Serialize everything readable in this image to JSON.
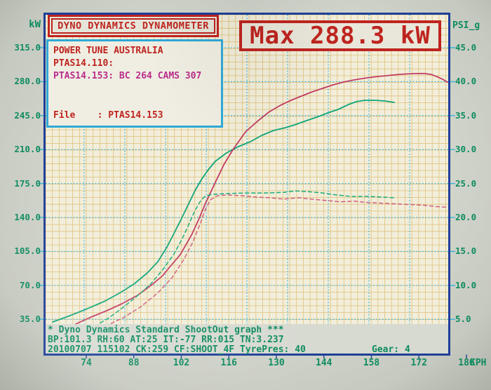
{
  "header": {
    "title": "DYNO DYNAMICS DYNAMOMETER",
    "max_badge": "Max 288.3 kW"
  },
  "info_box": {
    "company": "POWER TUNE AUSTRALIA",
    "run1": "PTAS14.110:",
    "run2": "PTAS14.153: BC 264 CAMS 307",
    "file": "File    : PTAS14.153"
  },
  "footer": {
    "line1": "* Dyno Dynamics Standard ShootOut graph ***",
    "line2": "BP:101.3 RH:60 AT:25 IT:-77 RR:015 TN:3.237",
    "line3": "20100707 115102 CK:259 CF:SHOOT_4F TyrePres: 40",
    "gear": "Gear: 4"
  },
  "axes": {
    "left_unit": "kW",
    "right_unit": "PSI_g",
    "x_unit": "KPH",
    "left_ticks": [
      "315.0",
      "280.0",
      "245.0",
      "210.0",
      "175.0",
      "140.0",
      "105.0",
      "70.0",
      "35.0"
    ],
    "right_ticks": [
      "45.0",
      "40.0",
      "35.0",
      "30.0",
      "25.0",
      "20.0",
      "15.0",
      "10.0",
      "5.0"
    ],
    "x_ticks": [
      "74",
      "88",
      "102",
      "116",
      "130",
      "144",
      "158",
      "172",
      "186"
    ]
  },
  "colors": {
    "frame": "#1e3f99",
    "grid_major": "#35b4dc",
    "grid_minor": "#ddb868",
    "plot_bg": "#f2eedb",
    "footer_bg": "#d7dad1",
    "page_bg": "#d4d7ce",
    "text_green": "#0e8b60",
    "text_red": "#bf241f",
    "text_magenta": "#b92d8c",
    "info_border": "#2fa9d8",
    "power_153": "#c23b63",
    "power_110": "#0ea57a",
    "boost_153": "#d06080",
    "boost_110": "#18ad7c"
  },
  "chart_data": {
    "type": "line",
    "title": "Max 288.3 kW",
    "xlabel": "KPH",
    "ylabel_left": "kW",
    "ylabel_right": "PSI_g",
    "x_range": [
      61,
      181
    ],
    "y_left_range": [
      30,
      322
    ],
    "y_right_range": [
      4.3,
      46
    ],
    "grid": true,
    "legend_position": "none",
    "max_power_kw": 288.3,
    "series": [
      {
        "name": "PTAS14.110 power",
        "axis": "left",
        "unit": "kW",
        "style": "solid",
        "color": "#0ea57a",
        "points": [
          [
            64.1,
            32.3
          ],
          [
            69.2,
            38.8
          ],
          [
            74.4,
            46.1
          ],
          [
            79.6,
            54.0
          ],
          [
            84.1,
            62.7
          ],
          [
            88.3,
            72.1
          ],
          [
            92.0,
            82.9
          ],
          [
            95.1,
            94.5
          ],
          [
            97.8,
            109.7
          ],
          [
            99.8,
            123.4
          ],
          [
            101.9,
            137.8
          ],
          [
            104.0,
            153.0
          ],
          [
            106.0,
            167.5
          ],
          [
            107.9,
            179.0
          ],
          [
            109.8,
            188.4
          ],
          [
            112.0,
            197.8
          ],
          [
            115.3,
            206.5
          ],
          [
            118.8,
            213.0
          ],
          [
            122.4,
            218.1
          ],
          [
            125.7,
            224.6
          ],
          [
            129.2,
            229.6
          ],
          [
            132.7,
            232.5
          ],
          [
            135.4,
            235.4
          ],
          [
            138.9,
            239.8
          ],
          [
            142.0,
            243.4
          ],
          [
            145.1,
            247.7
          ],
          [
            148.2,
            251.3
          ],
          [
            151.3,
            256.4
          ],
          [
            153.6,
            259.3
          ],
          [
            156.0,
            260.7
          ],
          [
            159.1,
            260.7
          ],
          [
            162.0,
            260.0
          ],
          [
            164.7,
            258.5
          ]
        ]
      },
      {
        "name": "PTAS14.153 power",
        "axis": "left",
        "unit": "kW",
        "style": "solid",
        "color": "#c23b63",
        "points": [
          [
            70.9,
            30.2
          ],
          [
            75.4,
            37.4
          ],
          [
            80.0,
            43.9
          ],
          [
            84.5,
            51.1
          ],
          [
            89.1,
            59.8
          ],
          [
            93.6,
            71.4
          ],
          [
            96.5,
            80.0
          ],
          [
            98.2,
            87.3
          ],
          [
            101.7,
            101.7
          ],
          [
            105.0,
            121.9
          ],
          [
            107.1,
            137.8
          ],
          [
            109.1,
            154.5
          ],
          [
            112.0,
            176.1
          ],
          [
            114.7,
            195.6
          ],
          [
            117.4,
            210.8
          ],
          [
            120.9,
            228.2
          ],
          [
            124.4,
            239.0
          ],
          [
            127.7,
            248.4
          ],
          [
            131.2,
            255.6
          ],
          [
            134.3,
            260.7
          ],
          [
            137.4,
            265.0
          ],
          [
            140.5,
            269.4
          ],
          [
            143.6,
            273.0
          ],
          [
            146.7,
            276.6
          ],
          [
            149.8,
            279.5
          ],
          [
            152.9,
            281.7
          ],
          [
            156.0,
            283.5
          ],
          [
            159.1,
            284.9
          ],
          [
            162.2,
            286.0
          ],
          [
            165.3,
            287.1
          ],
          [
            168.0,
            287.8
          ],
          [
            170.5,
            288.2
          ],
          [
            173.6,
            288.3
          ],
          [
            175.6,
            287.4
          ],
          [
            177.7,
            284.5
          ],
          [
            179.4,
            281.6
          ],
          [
            180.4,
            279.4
          ]
        ]
      },
      {
        "name": "PTAS14.110 boost",
        "axis": "right",
        "unit": "PSI_g",
        "style": "dashed",
        "color": "#18ad7c",
        "points": [
          [
            76.5,
            4.0
          ],
          [
            80.6,
            5.2
          ],
          [
            84.7,
            6.7
          ],
          [
            88.9,
            8.4
          ],
          [
            93.0,
            10.2
          ],
          [
            96.5,
            12.3
          ],
          [
            99.8,
            14.6
          ],
          [
            102.3,
            16.9
          ],
          [
            104.4,
            19.2
          ],
          [
            106.0,
            21.0
          ],
          [
            107.5,
            22.3
          ],
          [
            108.9,
            23.1
          ],
          [
            111.0,
            23.4
          ],
          [
            114.7,
            23.5
          ],
          [
            120.9,
            23.6
          ],
          [
            127.1,
            23.6
          ],
          [
            132.3,
            23.7
          ],
          [
            135.4,
            23.9
          ],
          [
            139.5,
            23.8
          ],
          [
            143.6,
            23.6
          ],
          [
            147.8,
            23.3
          ],
          [
            151.9,
            23.1
          ],
          [
            157.1,
            23.1
          ],
          [
            161.2,
            23.0
          ],
          [
            164.7,
            22.9
          ]
        ]
      },
      {
        "name": "PTAS14.153 boost",
        "axis": "right",
        "unit": "PSI_g",
        "style": "dashed",
        "color": "#d06080",
        "points": [
          [
            79.6,
            4.0
          ],
          [
            84.7,
            5.2
          ],
          [
            89.9,
            6.8
          ],
          [
            95.1,
            8.9
          ],
          [
            99.2,
            11.1
          ],
          [
            102.7,
            13.8
          ],
          [
            105.4,
            16.4
          ],
          [
            107.5,
            19.0
          ],
          [
            109.1,
            21.2
          ],
          [
            110.6,
            22.6
          ],
          [
            112.6,
            23.2
          ],
          [
            115.7,
            23.3
          ],
          [
            119.9,
            23.2
          ],
          [
            124.0,
            23.0
          ],
          [
            128.1,
            22.9
          ],
          [
            132.3,
            22.7
          ],
          [
            136.4,
            22.9
          ],
          [
            140.5,
            22.7
          ],
          [
            144.6,
            22.5
          ],
          [
            148.8,
            22.3
          ],
          [
            152.9,
            22.4
          ],
          [
            157.1,
            22.2
          ],
          [
            161.2,
            22.1
          ],
          [
            165.3,
            22.0
          ],
          [
            169.4,
            21.9
          ],
          [
            173.6,
            21.8
          ],
          [
            177.1,
            21.6
          ],
          [
            180.4,
            21.5
          ]
        ]
      }
    ]
  }
}
